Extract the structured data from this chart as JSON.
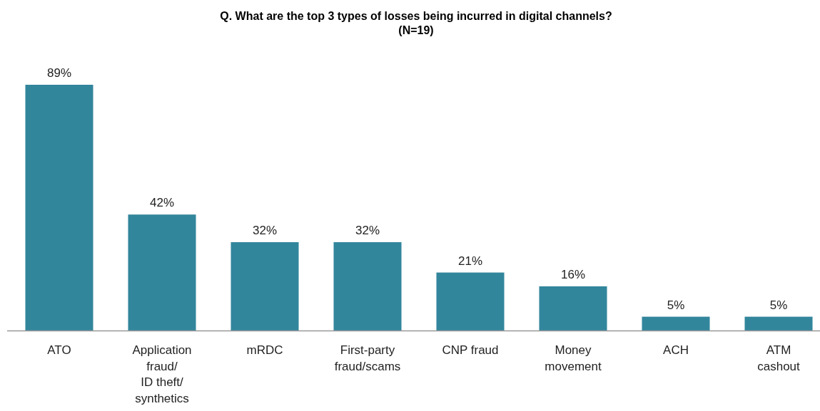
{
  "chart_data": {
    "type": "bar",
    "title": "Q. What are the top 3 types of losses being incurred in digital channels?",
    "subtitle": "(N=19)",
    "categories": [
      "ATO",
      "Application\nfraud/\nID theft/\nsynthetics",
      "mRDC",
      "First-party\nfraud/scams",
      "CNP fraud",
      "Money\nmovement",
      "ACH",
      "ATM\ncashout"
    ],
    "values": [
      89,
      42,
      32,
      32,
      21,
      16,
      5,
      5
    ],
    "value_labels": [
      "89%",
      "42%",
      "32%",
      "32%",
      "21%",
      "16%",
      "5%",
      "5%"
    ],
    "color": "#32869c"
  }
}
